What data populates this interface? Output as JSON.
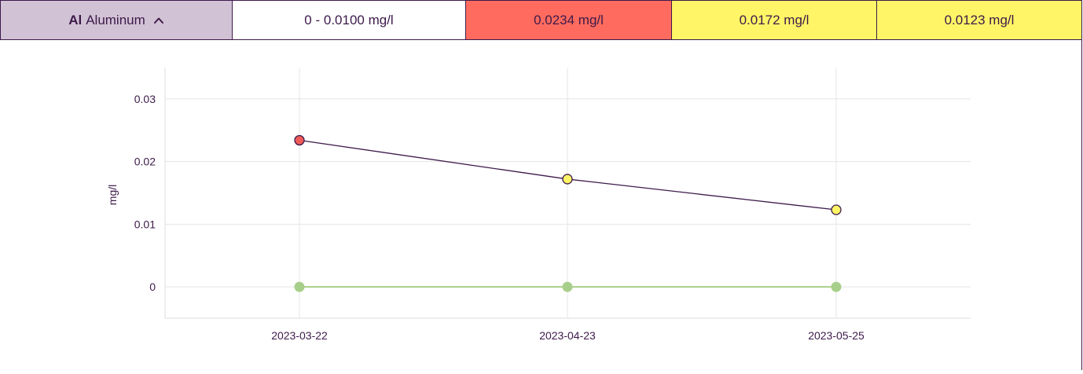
{
  "header": {
    "element_symbol": "Al",
    "element_name": "Aluminum",
    "toggle_icon": "chevron-up-icon",
    "range": "0 - 0.0100 mg/l",
    "results": [
      {
        "label": "0.0234 mg/l",
        "color": "#ff6b5e"
      },
      {
        "label": "0.0172 mg/l",
        "color": "#fff566"
      },
      {
        "label": "0.0123 mg/l",
        "color": "#fff566"
      }
    ],
    "colors": {
      "element_bg": "#d1c2d5",
      "range_bg": "#ffffff",
      "border": "#3d1a4a"
    }
  },
  "chart_data": {
    "type": "line",
    "ylabel": "mg/l",
    "ylim": [
      -0.005,
      0.035
    ],
    "yticks": [
      {
        "value": 0.03,
        "label": "0.03"
      },
      {
        "value": 0.02,
        "label": "0.02"
      },
      {
        "value": 0.01,
        "label": "0.01"
      },
      {
        "value": 0,
        "label": "0"
      }
    ],
    "categories": [
      "2023-03-22",
      "2023-04-23",
      "2023-05-25"
    ],
    "grid": true,
    "series": [
      {
        "values": [
          0.0234,
          0.0172,
          0.0123
        ],
        "line_color": "#3d1a4a",
        "point_colors": [
          "#ef5b5b",
          "#fff566",
          "#fff566"
        ],
        "point_stroke": "#3d1a4a"
      },
      {
        "values": [
          0,
          0,
          0
        ],
        "line_color": "#a8cf8a",
        "point_colors": [
          "#a8cf8a",
          "#a8cf8a",
          "#a8cf8a"
        ],
        "point_stroke": "#a8cf8a"
      }
    ]
  }
}
